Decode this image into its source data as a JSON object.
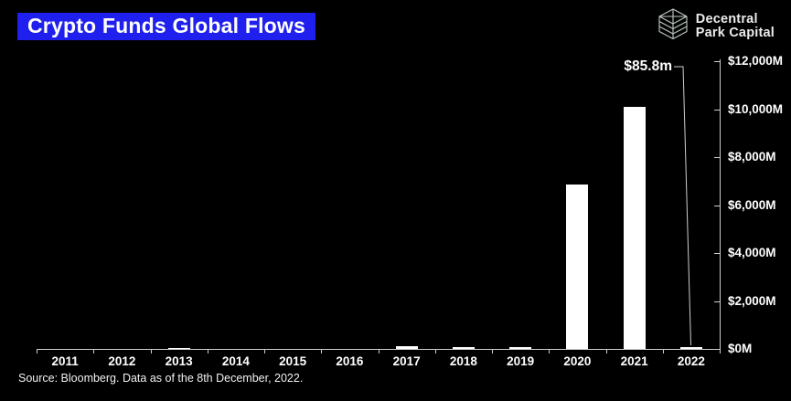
{
  "title": "Crypto Funds Global Flows",
  "logo": {
    "icon": "cube-layers-icon",
    "line1": "Decentral",
    "line2": "Park Capital"
  },
  "annotation": {
    "label": "$85.8m",
    "target_category": "2022"
  },
  "source": "Source: Bloomberg. Data as of the 8th December, 2022.",
  "colors": {
    "background": "#000000",
    "title_bg": "#2020ee",
    "bar": "#ffffff",
    "axis": "#cfcfcf",
    "text": "#ffffff",
    "logo_icon_stroke": "#bcc8c0"
  },
  "chart_data": {
    "type": "bar",
    "title": "Crypto Funds Global Flows",
    "categories": [
      "2011",
      "2012",
      "2013",
      "2014",
      "2015",
      "2016",
      "2017",
      "2018",
      "2019",
      "2020",
      "2021",
      "2022"
    ],
    "values": [
      0,
      0,
      50,
      0,
      0,
      0,
      110,
      90,
      85,
      6850,
      10100,
      85.8
    ],
    "units": "M USD",
    "xlabel": "",
    "ylabel": "",
    "ylim": [
      0,
      12000
    ],
    "y_ticks": [
      "$0M",
      "$2,000M",
      "$4,000M",
      "$6,000M",
      "$8,000M",
      "$10,000M",
      "$12,000M"
    ],
    "y_axis_side": "right",
    "grid": false,
    "legend": false,
    "annotations": [
      {
        "category": "2022",
        "label": "$85.8m"
      }
    ]
  }
}
